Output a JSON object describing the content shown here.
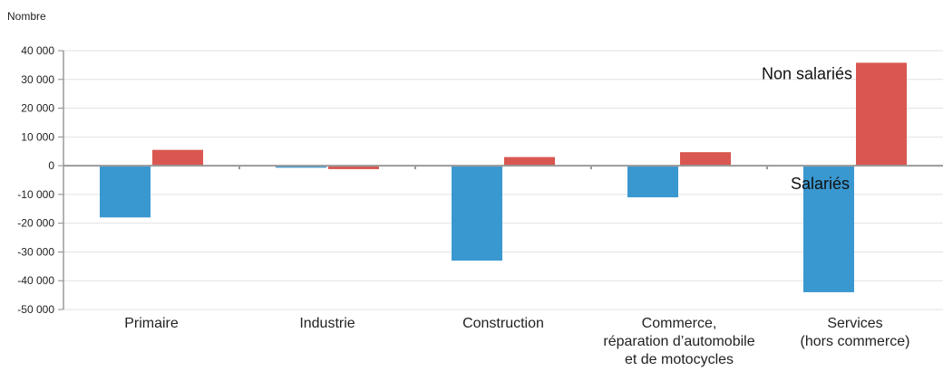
{
  "chart_data": {
    "type": "bar",
    "ylabel": "Nombre",
    "ylim": [
      -50000,
      40000
    ],
    "yticks": [
      40000,
      30000,
      20000,
      10000,
      0,
      -10000,
      -20000,
      -30000,
      -40000,
      -50000
    ],
    "ytick_labels": [
      "40 000",
      "30 000",
      "20 000",
      "10 000",
      "0",
      "-10 000",
      "-20 000",
      "-30 000",
      "-40 000",
      "-50 000"
    ],
    "grid": true,
    "categories": [
      [
        "Primaire"
      ],
      [
        "Industrie"
      ],
      [
        "Construction"
      ],
      [
        "Commerce,",
        "réparation d’automobile",
        "et de motocycles"
      ],
      [
        "Services",
        "(hors commerce)"
      ]
    ],
    "series": [
      {
        "name": "Salariés",
        "color": "#3a98d0",
        "values": [
          -18000,
          -700,
          -33000,
          -11000,
          -44000
        ]
      },
      {
        "name": "Non salariés",
        "color": "#d95750",
        "values": [
          5500,
          -1200,
          3000,
          4700,
          35800
        ]
      }
    ],
    "annotations": [
      {
        "text": "Non salariés",
        "series": 1,
        "category": 4
      },
      {
        "text": "Salariés",
        "series": 0,
        "category": 4
      }
    ]
  }
}
